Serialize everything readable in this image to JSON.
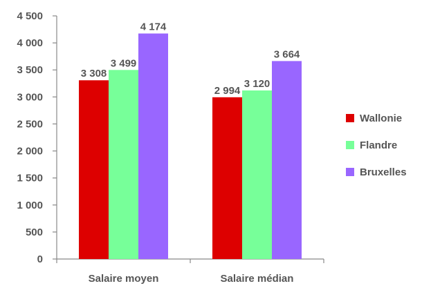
{
  "chart_data": {
    "type": "bar",
    "categories": [
      "Salaire moyen",
      "Salaire médian"
    ],
    "series": [
      {
        "name": "Wallonie",
        "values": [
          3308,
          2994
        ],
        "labels": [
          "3 308",
          "2 994"
        ],
        "color": "#dd0000"
      },
      {
        "name": "Flandre",
        "values": [
          3499,
          3120
        ],
        "labels": [
          "3 499",
          "3 120"
        ],
        "color": "#77ff99"
      },
      {
        "name": "Bruxelles",
        "values": [
          4174,
          3664
        ],
        "labels": [
          "4 174",
          "3 664"
        ],
        "color": "#9966ff"
      }
    ],
    "yticks": [
      0,
      500,
      1000,
      1500,
      2000,
      2500,
      3000,
      3500,
      4000,
      4500
    ],
    "ytick_labels": [
      "0",
      "500",
      "1 000",
      "1 500",
      "2 000",
      "2 500",
      "3 000",
      "3 500",
      "4 000",
      "4 500"
    ],
    "ylim": [
      0,
      4500
    ],
    "grid": false,
    "legend_position": "right"
  }
}
